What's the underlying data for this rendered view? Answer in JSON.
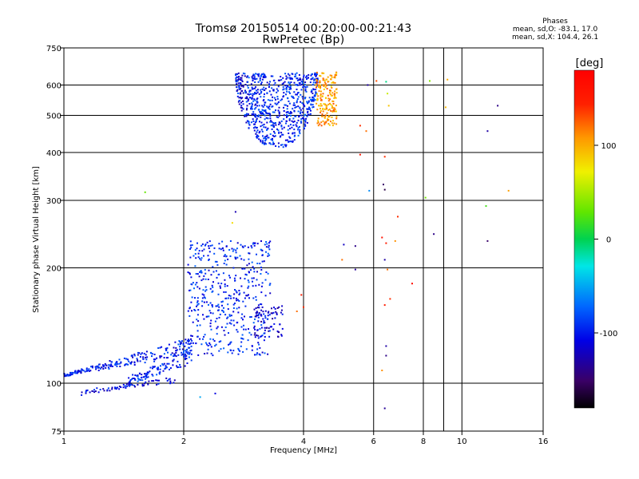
{
  "header": {
    "title": "Tromsø 20150514 00:20:00-00:21:43",
    "subtitle": "RwPretec (Bp)"
  },
  "phases_info": {
    "heading": "Phases",
    "line_o": "mean, sd,O: -83.1, 17.0",
    "line_x": "mean, sd,X: 104.4, 26.1"
  },
  "colorbar": {
    "unit_label": "[deg]",
    "tick_labels": [
      "100",
      "0",
      "-100"
    ],
    "tick_values": [
      100,
      0,
      -100
    ],
    "range": [
      -180,
      180
    ]
  },
  "chart_data": {
    "type": "scatter",
    "title": "Tromsø 20150514 00:20:00-00:21:43",
    "subtitle": "RwPretec (Bp)",
    "xlabel": "Frequency [MHz]",
    "ylabel": "Stationary phase Virtual Height [km]",
    "x_scale": "log",
    "y_scale": "log",
    "xlim": [
      1,
      16
    ],
    "ylim": [
      75,
      750
    ],
    "x_ticks": [
      1,
      2,
      4,
      6,
      8,
      10,
      16
    ],
    "x_tick_labels": [
      "1",
      "2",
      "4",
      "6",
      "8",
      "10",
      "16"
    ],
    "x_minor_gridlines": [
      9
    ],
    "y_ticks": [
      75,
      100,
      200,
      300,
      400,
      500,
      600,
      750
    ],
    "y_tick_labels": [
      "75",
      "100",
      "200",
      "300",
      "400",
      "500",
      "600",
      "750"
    ],
    "grid": true,
    "color_by": "phase [deg]",
    "clusters": [
      {
        "name": "E/F1 low trace",
        "shape": "band",
        "x_range": [
          1.0,
          2.1
        ],
        "y_start": [
          104,
          106
        ],
        "y_end": [
          118,
          132
        ],
        "phase": -100,
        "count": 220
      },
      {
        "name": "bottom-left low echoes",
        "shape": "band",
        "x_range": [
          1.1,
          1.9
        ],
        "y_start": [
          93,
          96
        ],
        "y_end": [
          100,
          104
        ],
        "phase": -105,
        "count": 70
      },
      {
        "name": "middle trace",
        "shape": "band",
        "x_range": [
          1.45,
          2.1
        ],
        "y_start": [
          98,
          104
        ],
        "y_end": [
          112,
          125
        ],
        "phase": -95,
        "count": 110
      },
      {
        "name": "F1 cusp",
        "shape": "blob",
        "x_range": [
          2.05,
          3.3
        ],
        "y_range": [
          118,
          235
        ],
        "phase": -95,
        "count": 480
      },
      {
        "name": "F1 tail",
        "shape": "blob",
        "x_range": [
          3.0,
          3.55
        ],
        "y_range": [
          132,
          160
        ],
        "phase": -118,
        "count": 70
      },
      {
        "name": "F2 O-mode dome",
        "shape": "dome",
        "x_range": [
          2.7,
          4.35
        ],
        "y_range": [
          410,
          645
        ],
        "phase": -95,
        "count": 750
      },
      {
        "name": "F2 X-mode",
        "shape": "blob",
        "x_range": [
          4.3,
          4.85
        ],
        "y_range": [
          470,
          648
        ],
        "phase": 104,
        "count": 190
      }
    ],
    "scattered_points": [
      {
        "x": 1.6,
        "y": 315,
        "phase": 30
      },
      {
        "x": 2.65,
        "y": 262,
        "phase": 80
      },
      {
        "x": 2.7,
        "y": 280,
        "phase": -125
      },
      {
        "x": 5.05,
        "y": 230,
        "phase": -120
      },
      {
        "x": 5.0,
        "y": 210,
        "phase": 120
      },
      {
        "x": 5.4,
        "y": 228,
        "phase": -140
      },
      {
        "x": 5.4,
        "y": 198,
        "phase": -135
      },
      {
        "x": 5.55,
        "y": 470,
        "phase": 140
      },
      {
        "x": 5.8,
        "y": 600,
        "phase": -130
      },
      {
        "x": 5.75,
        "y": 455,
        "phase": 120
      },
      {
        "x": 6.1,
        "y": 615,
        "phase": 130
      },
      {
        "x": 5.85,
        "y": 318,
        "phase": -60
      },
      {
        "x": 5.55,
        "y": 395,
        "phase": 155
      },
      {
        "x": 6.45,
        "y": 612,
        "phase": -10
      },
      {
        "x": 6.5,
        "y": 570,
        "phase": 60
      },
      {
        "x": 6.55,
        "y": 530,
        "phase": 90
      },
      {
        "x": 6.4,
        "y": 390,
        "phase": 140
      },
      {
        "x": 6.35,
        "y": 330,
        "phase": -150
      },
      {
        "x": 6.4,
        "y": 320,
        "phase": -160
      },
      {
        "x": 6.3,
        "y": 240,
        "phase": 160
      },
      {
        "x": 6.45,
        "y": 232,
        "phase": 150
      },
      {
        "x": 6.4,
        "y": 210,
        "phase": -130
      },
      {
        "x": 6.5,
        "y": 198,
        "phase": 120
      },
      {
        "x": 6.9,
        "y": 272,
        "phase": 140
      },
      {
        "x": 6.8,
        "y": 235,
        "phase": 110
      },
      {
        "x": 6.6,
        "y": 166,
        "phase": 140
      },
      {
        "x": 6.4,
        "y": 160,
        "phase": 150
      },
      {
        "x": 6.45,
        "y": 125,
        "phase": -130
      },
      {
        "x": 6.45,
        "y": 118,
        "phase": -140
      },
      {
        "x": 6.3,
        "y": 108,
        "phase": 110
      },
      {
        "x": 6.4,
        "y": 86,
        "phase": -135
      },
      {
        "x": 7.5,
        "y": 182,
        "phase": 170
      },
      {
        "x": 8.1,
        "y": 305,
        "phase": 35
      },
      {
        "x": 8.3,
        "y": 615,
        "phase": 40
      },
      {
        "x": 8.5,
        "y": 245,
        "phase": -140
      },
      {
        "x": 9.2,
        "y": 620,
        "phase": 100
      },
      {
        "x": 9.1,
        "y": 525,
        "phase": 95
      },
      {
        "x": 11.5,
        "y": 290,
        "phase": 20
      },
      {
        "x": 11.6,
        "y": 235,
        "phase": -150
      },
      {
        "x": 11.6,
        "y": 455,
        "phase": -130
      },
      {
        "x": 12.3,
        "y": 530,
        "phase": -140
      },
      {
        "x": 13.1,
        "y": 318,
        "phase": 105
      },
      {
        "x": 2.2,
        "y": 92,
        "phase": -50
      },
      {
        "x": 2.4,
        "y": 94,
        "phase": -110
      },
      {
        "x": 3.85,
        "y": 154,
        "phase": 120
      },
      {
        "x": 3.95,
        "y": 170,
        "phase": 150
      },
      {
        "x": 4.0,
        "y": 158,
        "phase": 140
      }
    ]
  }
}
